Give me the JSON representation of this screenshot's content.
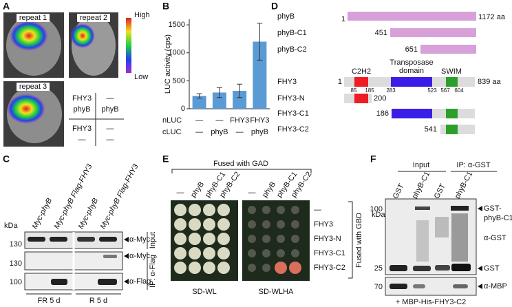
{
  "panel_a": {
    "label": "A",
    "images": [
      "repeat 1",
      "repeat 2",
      "repeat 3"
    ],
    "scale": [
      "High",
      "Low"
    ],
    "grid": [
      [
        "FHY3",
        "phyB"
      ],
      [
        "—",
        "phyB"
      ],
      [
        "FHY3",
        "—"
      ],
      [
        "—",
        "—"
      ]
    ]
  },
  "chart_data": {
    "type": "bar",
    "label": "B",
    "ylabel": "LUC activity (cps)",
    "row_labels": [
      "nLUC",
      "cLUC"
    ],
    "rows": [
      [
        "—",
        "—",
        "FHY3",
        "FHY3"
      ],
      [
        "—",
        "phyB",
        "—",
        "phyB"
      ]
    ],
    "values": [
      230,
      290,
      320,
      1200
    ],
    "errors": [
      40,
      90,
      120,
      330
    ],
    "color": "#5b9bd5",
    "ylim": [
      0,
      1600
    ],
    "yticks": [
      0,
      500,
      1000,
      1500
    ]
  },
  "panel_c": {
    "label": "C",
    "lanes": [
      "Myc-phyB",
      "Myc-phyB Flag-FHY3",
      "Myc-phyB",
      "Myc-phyB Flag-FHY3"
    ],
    "unit": "kDa",
    "markers": [
      "130",
      "130",
      "100"
    ],
    "probes": [
      "α-Myc",
      "α-Myc",
      "α-Flag"
    ],
    "groups": [
      "Input",
      "IP: α-Flag"
    ],
    "conditions": [
      "FR 5 d",
      "R 5 d"
    ]
  },
  "panel_d": {
    "label": "D",
    "phy": [
      {
        "name": "phyB",
        "start": "1",
        "end": "1172 aa"
      },
      {
        "name": "phyB-C1",
        "start": "451"
      },
      {
        "name": "phyB-C2",
        "start": "651"
      }
    ],
    "domains": [
      "C2H2",
      "Transposase",
      "domain",
      "SWIM"
    ],
    "fhy": [
      {
        "name": "FHY3",
        "start": "1",
        "end": "839 aa"
      },
      {
        "name": "FHY3-N",
        "end": "200"
      },
      {
        "name": "FHY3-C1",
        "start": "186"
      },
      {
        "name": "FHY3-C2",
        "start": "541"
      }
    ],
    "positions": [
      "85",
      "185",
      "283",
      "523",
      "567",
      "604"
    ]
  },
  "panel_e": {
    "label": "E",
    "header": "Fused with GAD",
    "columns": [
      "—",
      "phyB",
      "phyB-C1",
      "phyB-C2"
    ],
    "rows": [
      "—",
      "FHY3",
      "FHY3-N",
      "FHY3-C1",
      "FHY3-C2"
    ],
    "side": "Fused with GBD",
    "media": [
      "SD-WL",
      "SD-WLHA"
    ]
  },
  "panel_f": {
    "label": "F",
    "groups": [
      "Input",
      "IP: α-GST"
    ],
    "lanes": [
      "GST",
      "phyB-C1",
      "GST",
      "phyB-C1"
    ],
    "unit": "kDa",
    "markers": [
      "100",
      "25",
      "70"
    ],
    "bands": [
      "GST-",
      "phyB-C1",
      "α-GST",
      "GST",
      "α-MBP"
    ],
    "footer": "+ MBP-His-FHY3-C2"
  }
}
